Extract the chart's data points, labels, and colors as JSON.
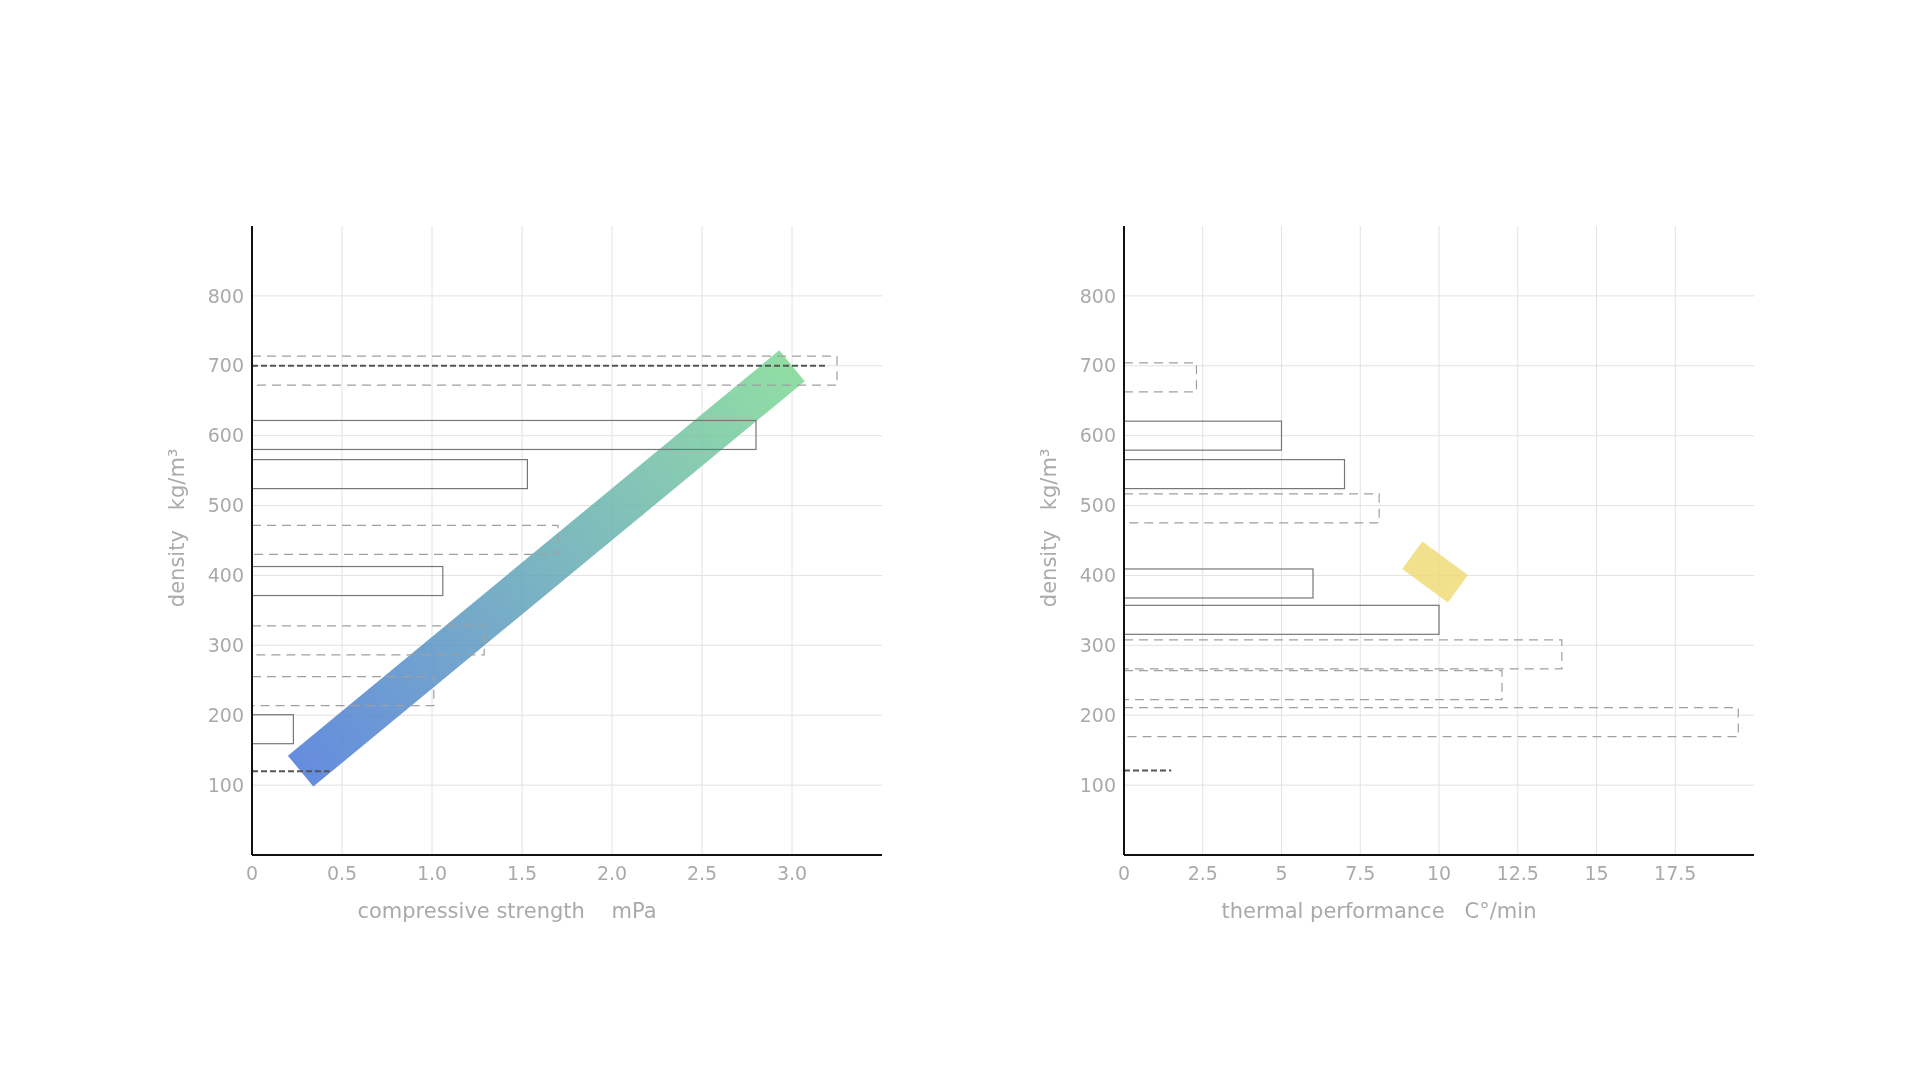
{
  "chart_data": [
    {
      "type": "bar",
      "orientation": "horizontal",
      "xlabel": "compressive strength    mPa",
      "ylabel": "density   kg/m³",
      "xlim": [
        0,
        3.5
      ],
      "xticks": [
        0,
        {
          "value": 0.5,
          "label": "0.5"
        },
        {
          "value": 1,
          "label": "1.0"
        },
        {
          "value": 1.5,
          "label": "1.5"
        },
        {
          "value": 2,
          "label": "2.0"
        },
        {
          "value": 2.5,
          "label": "2.5"
        },
        {
          "value": 3,
          "label": "3.0"
        }
      ],
      "ylim": [
        0,
        900
      ],
      "yticks": [
        100,
        200,
        300,
        400,
        500,
        600,
        700,
        800
      ],
      "grid": true,
      "series": [
        {
          "color": "#777777",
          "line_style": "solid",
          "x": [
            601,
            545,
            392,
            180
          ],
          "values": [
            2.8,
            1.53,
            1.06,
            0.23
          ]
        },
        {
          "color": "#a0a0a0",
          "line_style": "dashed",
          "x": [
            693,
            451,
            307,
            234.5
          ],
          "values": [
            3.25,
            1.7,
            1.29,
            1.01
          ]
        },
        {
          "type": "line",
          "color": "#555555",
          "line_style": "dashed",
          "x": [
            700,
            700
          ],
          "values": [
            0,
            3.2
          ]
        },
        {
          "type": "line",
          "color": "#555555",
          "line_style": "dashed",
          "x": [
            120,
            120
          ],
          "values": [
            0,
            0.43
          ]
        },
        {
          "type": "line",
          "colors": [
            "#4a78d8",
            "#7dd894"
          ],
          "x": [
            120,
            700
          ],
          "values": [
            0.27,
            3.0
          ]
        }
      ]
    },
    {
      "type": "bar",
      "orientation": "horizontal",
      "xlabel": "thermal performance   C°/min",
      "ylabel": "density   kg/m³",
      "xlim": [
        0,
        20
      ],
      "xticks": [
        0,
        2.5,
        5,
        7.5,
        10,
        12.5,
        15,
        17.5
      ],
      "ylim": [
        0,
        900
      ],
      "yticks": [
        100,
        200,
        300,
        400,
        500,
        600,
        700,
        800
      ],
      "grid": true,
      "series": [
        {
          "color": "#777777",
          "line_style": "solid",
          "x": [
            600,
            545,
            388.5,
            336.5
          ],
          "values": [
            5,
            7,
            6,
            10
          ]
        },
        {
          "color": "#a0a0a0",
          "line_style": "dashed",
          "x": [
            683.5,
            496,
            287,
            243,
            190
          ],
          "values": [
            2.3,
            8.1,
            13.9,
            12,
            19.5
          ]
        },
        {
          "type": "line",
          "color": "#555555",
          "line_style": "dashed",
          "x": [
            121,
            121
          ],
          "values": [
            0,
            1.5
          ]
        },
        {
          "type": "line",
          "colors": [
            "#f0dc78",
            "#f0dc78"
          ],
          "x": [
            429,
            381
          ],
          "values": [
            9.15,
            10.6
          ]
        }
      ]
    }
  ]
}
